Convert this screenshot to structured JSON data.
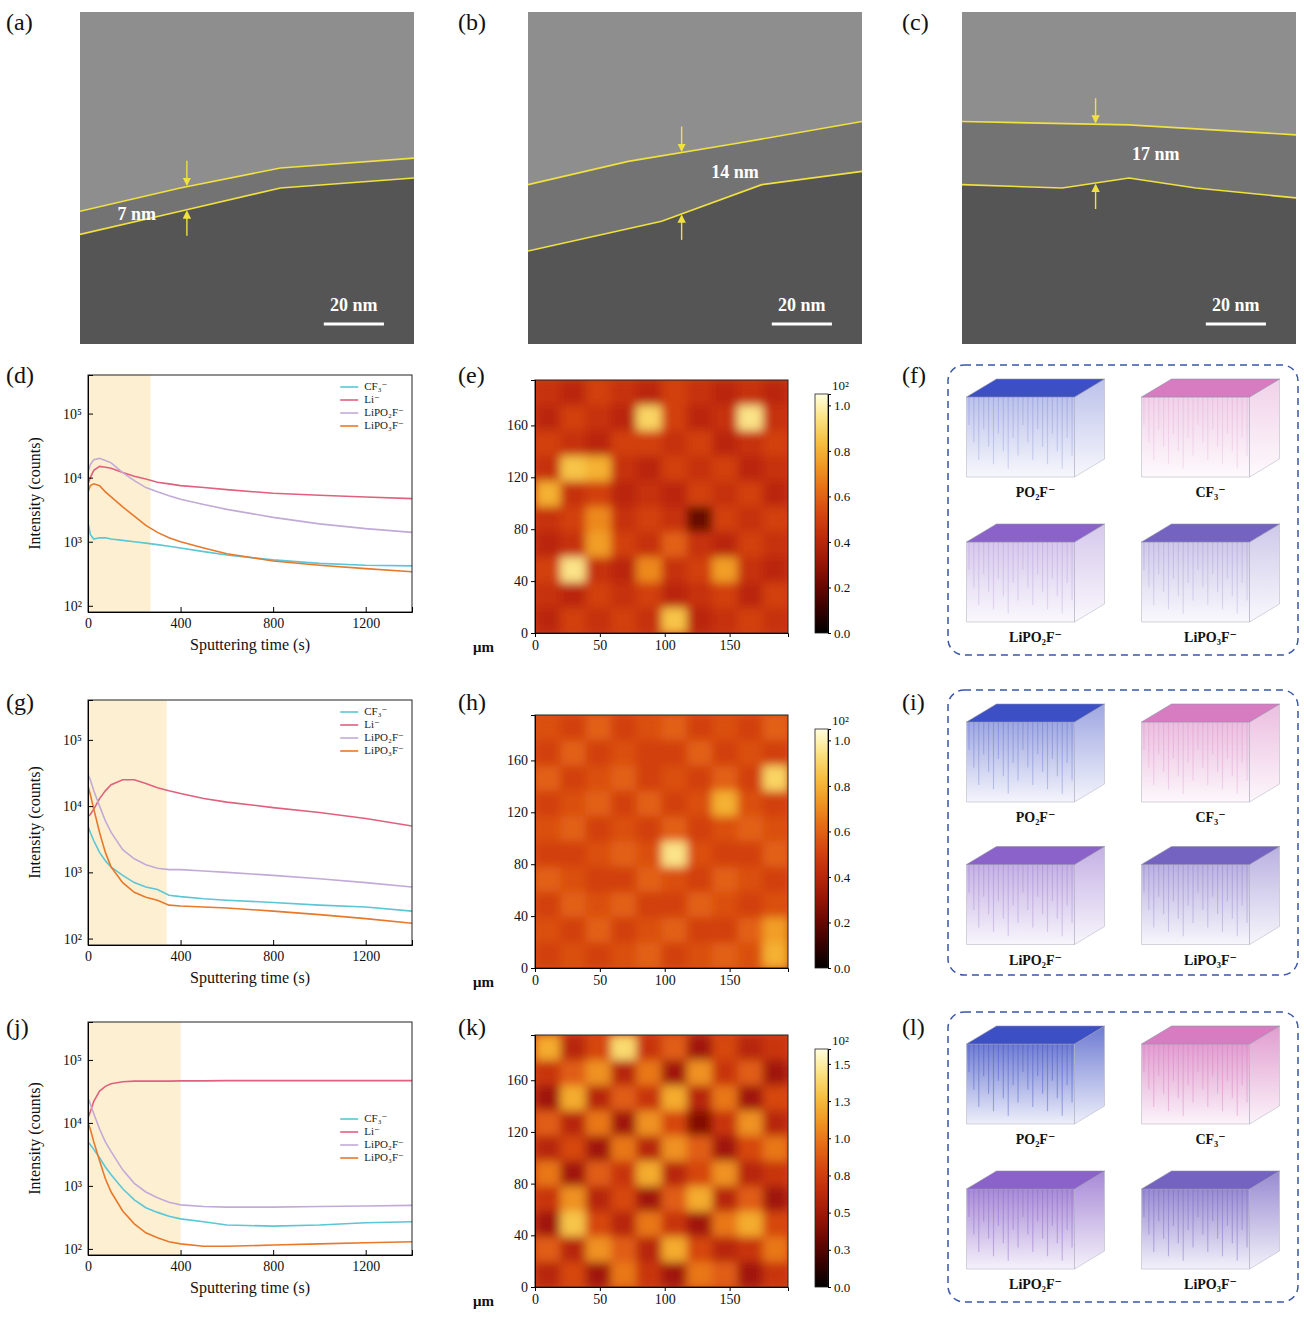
{
  "panel_labels": [
    "(a)",
    "(b)",
    "(c)",
    "(d)",
    "(e)",
    "(f)",
    "(g)",
    "(h)",
    "(i)",
    "(j)",
    "(k)",
    "(l)"
  ],
  "tem": [
    {
      "thickness": "7 nm",
      "scale_bar": "20 nm"
    },
    {
      "thickness": "14 nm",
      "scale_bar": "20 nm"
    },
    {
      "thickness": "17 nm",
      "scale_bar": "20 nm"
    }
  ],
  "chart_data": [
    {
      "type": "line",
      "xlabel": "Sputtering time (s)",
      "ylabel": "Intensity (counts)",
      "log": "y",
      "legend": "upper right",
      "xlim": [
        0,
        1400
      ],
      "xticks": [
        0,
        400,
        800,
        1200
      ],
      "ylim": [
        80,
        400000
      ],
      "yticks": [
        {
          "value": 100,
          "label": "10²"
        },
        {
          "value": 1000,
          "label": "10³"
        },
        {
          "value": 10000,
          "label": "10⁴"
        },
        {
          "value": 100000,
          "label": "10⁵"
        }
      ],
      "highlight": [
        0,
        270
      ],
      "x": [
        0,
        10,
        25,
        50,
        75,
        100,
        150,
        200,
        250,
        300,
        350,
        400,
        500,
        600,
        800,
        1000,
        1200,
        1400
      ],
      "series": [
        {
          "name": "CF₃⁻",
          "color": "#5bc6d6",
          "values": [
            2000,
            1300,
            1100,
            1150,
            1150,
            1100,
            1050,
            1000,
            950,
            900,
            850,
            800,
            700,
            620,
            520,
            460,
            430,
            420
          ]
        },
        {
          "name": "Li⁻",
          "color": "#e0607e",
          "values": [
            8000,
            10000,
            13000,
            15000,
            14500,
            14000,
            12000,
            10500,
            9500,
            8500,
            8000,
            7500,
            7000,
            6500,
            5700,
            5300,
            5000,
            4700
          ]
        },
        {
          "name": "LiPO₂F⁻",
          "color": "#c2aad8",
          "values": [
            12000,
            16000,
            19000,
            20000,
            18500,
            17000,
            12000,
            9000,
            7000,
            6000,
            5200,
            4600,
            3800,
            3200,
            2400,
            1900,
            1600,
            1400
          ]
        },
        {
          "name": "LiPO₃F⁻",
          "color": "#e8782a",
          "values": [
            6000,
            7500,
            8000,
            7500,
            6000,
            5000,
            3500,
            2500,
            1800,
            1400,
            1150,
            1000,
            800,
            650,
            500,
            430,
            380,
            340
          ]
        }
      ]
    },
    {
      "type": "heatmap",
      "xlabel": "μm",
      "xlim": [
        0,
        195
      ],
      "ylim": [
        0,
        195
      ],
      "xticks": [
        0,
        50,
        100,
        150
      ],
      "yticks": [
        0,
        40,
        80,
        120,
        160
      ],
      "colorbar_range": [
        0,
        1.05
      ],
      "colorbar_ticks": [
        {
          "value": 0,
          "label": "0.0"
        },
        0.2,
        0.4,
        0.6,
        0.8,
        {
          "value": 1,
          "label": "1.0"
        }
      ],
      "colorbar_label": "10²",
      "cells": [
        [
          0.45,
          0.4,
          0.5,
          0.45,
          0.4,
          0.5,
          0.45,
          0.4,
          0.45,
          0.4
        ],
        [
          0.4,
          0.5,
          0.45,
          0.4,
          0.9,
          0.5,
          0.4,
          0.45,
          0.95,
          0.45
        ],
        [
          0.5,
          0.45,
          0.4,
          0.5,
          0.5,
          0.45,
          0.5,
          0.4,
          0.45,
          0.5
        ],
        [
          0.45,
          0.85,
          0.8,
          0.45,
          0.4,
          0.5,
          0.45,
          0.5,
          0.4,
          0.45
        ],
        [
          0.8,
          0.45,
          0.5,
          0.4,
          0.45,
          0.4,
          0.5,
          0.45,
          0.5,
          0.4
        ],
        [
          0.45,
          0.5,
          0.7,
          0.45,
          0.5,
          0.45,
          0.2,
          0.5,
          0.45,
          0.5
        ],
        [
          0.4,
          0.45,
          0.75,
          0.5,
          0.45,
          0.6,
          0.45,
          0.4,
          0.5,
          0.45
        ],
        [
          0.5,
          0.95,
          0.45,
          0.4,
          0.7,
          0.45,
          0.5,
          0.75,
          0.45,
          0.4
        ],
        [
          0.45,
          0.4,
          0.5,
          0.45,
          0.5,
          0.4,
          0.45,
          0.5,
          0.4,
          0.5
        ],
        [
          0.4,
          0.5,
          0.45,
          0.5,
          0.45,
          0.85,
          0.4,
          0.45,
          0.5,
          0.45
        ]
      ]
    },
    {
      "type": "line",
      "xlabel": "Sputtering time (s)",
      "ylabel": "Intensity (counts)",
      "log": "y",
      "legend": "upper right",
      "xlim": [
        0,
        1400
      ],
      "xticks": [
        0,
        400,
        800,
        1200
      ],
      "ylim": [
        80,
        400000
      ],
      "yticks": [
        {
          "value": 100,
          "label": "10²"
        },
        {
          "value": 1000,
          "label": "10³"
        },
        {
          "value": 10000,
          "label": "10⁴"
        },
        {
          "value": 100000,
          "label": "10⁵"
        }
      ],
      "highlight": [
        0,
        340
      ],
      "x": [
        0,
        10,
        25,
        50,
        75,
        100,
        150,
        200,
        250,
        300,
        350,
        400,
        500,
        600,
        800,
        1000,
        1200,
        1400
      ],
      "series": [
        {
          "name": "CF₃⁻",
          "color": "#5bc6d6",
          "values": [
            5000,
            4000,
            3000,
            2000,
            1500,
            1200,
            900,
            700,
            600,
            550,
            450,
            430,
            400,
            380,
            350,
            320,
            300,
            260
          ]
        },
        {
          "name": "Li⁻",
          "color": "#e0607e",
          "values": [
            7000,
            7500,
            9000,
            13000,
            17000,
            21000,
            25000,
            25000,
            22000,
            19000,
            17000,
            15500,
            13000,
            11500,
            9500,
            8000,
            6500,
            5000
          ]
        },
        {
          "name": "LiPO₂F⁻",
          "color": "#c2aad8",
          "values": [
            30000,
            25000,
            17000,
            10000,
            6000,
            4000,
            2200,
            1600,
            1300,
            1150,
            1100,
            1100,
            1050,
            1000,
            900,
            800,
            700,
            600
          ]
        },
        {
          "name": "LiPO₃F⁻",
          "color": "#e8782a",
          "values": [
            20000,
            15000,
            9000,
            4000,
            2000,
            1200,
            700,
            500,
            420,
            380,
            320,
            310,
            300,
            290,
            260,
            230,
            200,
            170
          ]
        }
      ]
    },
    {
      "type": "heatmap",
      "xlabel": "μm",
      "xlim": [
        0,
        195
      ],
      "ylim": [
        0,
        195
      ],
      "xticks": [
        0,
        50,
        100,
        150
      ],
      "yticks": [
        0,
        40,
        80,
        120,
        160
      ],
      "colorbar_range": [
        0,
        1.05
      ],
      "colorbar_ticks": [
        {
          "value": 0,
          "label": "0.0"
        },
        0.2,
        0.4,
        0.6,
        0.8,
        {
          "value": 1,
          "label": "1.0"
        }
      ],
      "colorbar_label": "10²",
      "cells": [
        [
          0.55,
          0.5,
          0.6,
          0.5,
          0.55,
          0.6,
          0.5,
          0.55,
          0.5,
          0.6
        ],
        [
          0.5,
          0.6,
          0.5,
          0.55,
          0.5,
          0.5,
          0.6,
          0.5,
          0.55,
          0.5
        ],
        [
          0.6,
          0.5,
          0.55,
          0.6,
          0.5,
          0.55,
          0.5,
          0.6,
          0.5,
          0.9
        ],
        [
          0.5,
          0.55,
          0.6,
          0.5,
          0.6,
          0.5,
          0.55,
          0.8,
          0.55,
          0.5
        ],
        [
          0.55,
          0.6,
          0.5,
          0.55,
          0.5,
          0.6,
          0.5,
          0.55,
          0.6,
          0.55
        ],
        [
          0.5,
          0.5,
          0.55,
          0.6,
          0.55,
          0.95,
          0.55,
          0.5,
          0.5,
          0.6
        ],
        [
          0.6,
          0.55,
          0.5,
          0.5,
          0.6,
          0.55,
          0.5,
          0.6,
          0.55,
          0.5
        ],
        [
          0.5,
          0.6,
          0.55,
          0.6,
          0.5,
          0.5,
          0.6,
          0.55,
          0.5,
          0.55
        ],
        [
          0.55,
          0.5,
          0.6,
          0.5,
          0.55,
          0.6,
          0.5,
          0.5,
          0.6,
          0.75
        ],
        [
          0.5,
          0.55,
          0.5,
          0.55,
          0.6,
          0.5,
          0.55,
          0.6,
          0.55,
          0.8
        ]
      ]
    },
    {
      "type": "line",
      "xlabel": "Sputtering time (s)",
      "ylabel": "Intensity (counts)",
      "log": "y",
      "legend": "center right",
      "xlim": [
        0,
        1400
      ],
      "xticks": [
        0,
        400,
        800,
        1200
      ],
      "ylim": [
        80,
        400000
      ],
      "yticks": [
        {
          "value": 100,
          "label": "10²"
        },
        {
          "value": 1000,
          "label": "10³"
        },
        {
          "value": 10000,
          "label": "10⁴"
        },
        {
          "value": 100000,
          "label": "10⁵"
        }
      ],
      "highlight": [
        0,
        400
      ],
      "x": [
        0,
        10,
        25,
        50,
        75,
        100,
        150,
        200,
        250,
        300,
        350,
        400,
        500,
        600,
        800,
        1000,
        1200,
        1400
      ],
      "series": [
        {
          "name": "CF₃⁻",
          "color": "#5bc6d6",
          "values": [
            5000,
            4500,
            3800,
            2800,
            2000,
            1500,
            900,
            600,
            450,
            380,
            330,
            300,
            270,
            240,
            230,
            240,
            260,
            270
          ]
        },
        {
          "name": "Li⁻",
          "color": "#e0607e",
          "values": [
            12000,
            15000,
            22000,
            32000,
            38000,
            42000,
            45000,
            46000,
            46000,
            46000,
            46000,
            46500,
            46500,
            47000,
            47000,
            47000,
            47000,
            47000
          ]
        },
        {
          "name": "LiPO₂F⁻",
          "color": "#c2aad8",
          "values": [
            25000,
            20000,
            14000,
            8000,
            5000,
            3500,
            1800,
            1100,
            800,
            650,
            550,
            500,
            470,
            460,
            460,
            470,
            480,
            490
          ]
        },
        {
          "name": "LiPO₃F⁻",
          "color": "#e8782a",
          "values": [
            10000,
            8000,
            5000,
            2500,
            1300,
            800,
            400,
            250,
            180,
            150,
            130,
            120,
            110,
            110,
            115,
            120,
            125,
            130
          ]
        }
      ]
    },
    {
      "type": "heatmap",
      "xlabel": "μm",
      "xlim": [
        0,
        195
      ],
      "ylim": [
        0,
        195
      ],
      "xticks": [
        0,
        50,
        100,
        150
      ],
      "yticks": [
        0,
        40,
        80,
        120,
        160
      ],
      "colorbar_range": [
        0,
        1.6
      ],
      "colorbar_ticks": [
        {
          "value": 0,
          "label": "0.0"
        },
        {
          "value": 0.25,
          "label": "0.3"
        },
        0.5,
        {
          "value": 0.75,
          "label": "0.8"
        },
        {
          "value": 1,
          "label": "1.0"
        },
        {
          "value": 1.25,
          "label": "1.3"
        },
        1.5
      ],
      "colorbar_label": "10²",
      "cells": [
        [
          1.2,
          0.6,
          0.8,
          1.4,
          0.7,
          0.9,
          0.5,
          0.8,
          0.6,
          0.7
        ],
        [
          0.7,
          0.9,
          1.1,
          0.6,
          1.0,
          0.5,
          1.1,
          0.7,
          0.9,
          0.5
        ],
        [
          0.5,
          1.2,
          0.6,
          0.9,
          0.7,
          1.2,
          0.6,
          1.0,
          0.5,
          0.8
        ],
        [
          0.9,
          0.6,
          1.0,
          0.5,
          1.1,
          0.8,
          0.4,
          0.7,
          1.1,
          0.6
        ],
        [
          0.6,
          0.8,
          0.5,
          1.0,
          0.6,
          1.1,
          0.9,
          0.5,
          0.8,
          1.0
        ],
        [
          1.0,
          0.5,
          0.9,
          0.7,
          1.2,
          0.6,
          0.8,
          1.1,
          0.6,
          0.7
        ],
        [
          0.7,
          1.1,
          0.6,
          0.8,
          0.5,
          0.9,
          1.2,
          0.6,
          0.9,
          0.5
        ],
        [
          0.5,
          1.3,
          0.8,
          0.6,
          1.0,
          0.7,
          0.5,
          1.0,
          1.2,
          0.8
        ],
        [
          0.9,
          0.6,
          1.1,
          0.9,
          0.6,
          1.2,
          0.8,
          0.6,
          0.7,
          1.0
        ],
        [
          0.6,
          0.8,
          0.5,
          1.0,
          0.7,
          0.5,
          1.0,
          0.9,
          0.5,
          0.7
        ]
      ]
    }
  ],
  "renders": [
    {
      "labels": [
        "PO₂F⁻",
        "CF₃⁻",
        "LiPO₂F⁻",
        "LiPO₃F⁻"
      ]
    },
    {
      "labels": [
        "PO₂F⁻",
        "CF₃⁻",
        "LiPO₂F⁻",
        "LiPO₃F⁻"
      ]
    },
    {
      "labels": [
        "PO₂F⁻",
        "CF₃⁻",
        "LiPO₂F⁻",
        "LiPO₃F⁻"
      ]
    }
  ]
}
